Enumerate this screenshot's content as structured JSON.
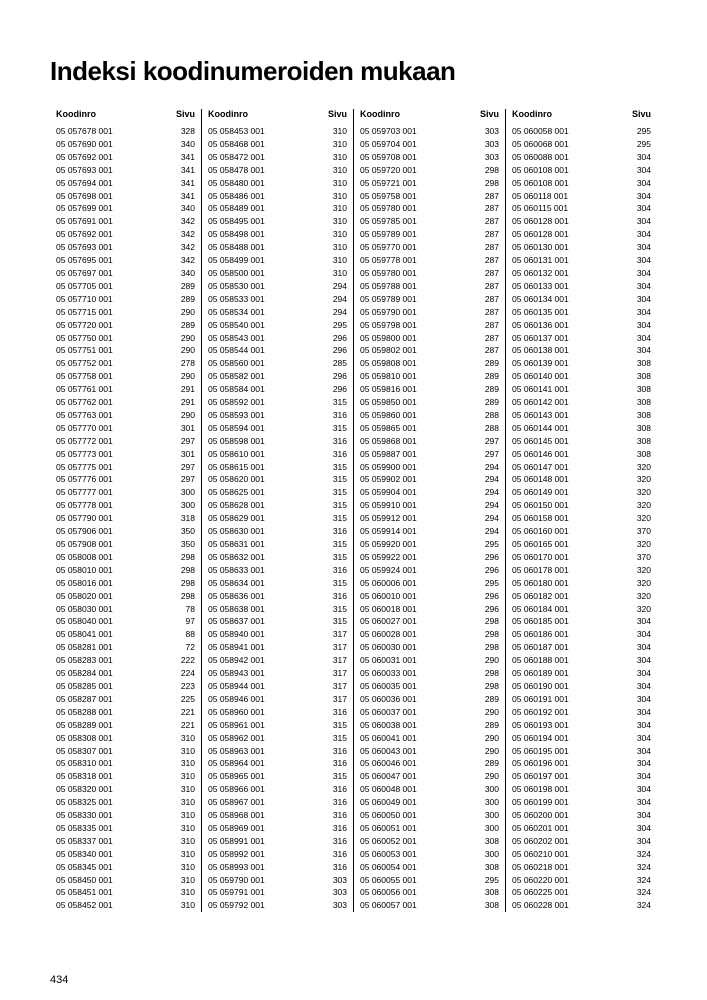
{
  "title": "Indeksi koodinumeroiden mukaan",
  "header_code": "Koodinro",
  "header_page": "Sivu",
  "page_number": "434",
  "columns": [
    [
      {
        "c": "05 057678 001",
        "p": "328"
      },
      {
        "c": "05 057690 001",
        "p": "340"
      },
      {
        "c": "05 057692 001",
        "p": "341"
      },
      {
        "c": "05 057693 001",
        "p": "341"
      },
      {
        "c": "05 057694 001",
        "p": "341"
      },
      {
        "c": "05 057698 001",
        "p": "341"
      },
      {
        "c": "05 057699 001",
        "p": "340"
      },
      {
        "c": "05 057691 001",
        "p": "342"
      },
      {
        "c": "05 057692 001",
        "p": "342"
      },
      {
        "c": "05 057693 001",
        "p": "342"
      },
      {
        "c": "05 057695 001",
        "p": "342"
      },
      {
        "c": "05 057697 001",
        "p": "340"
      },
      {
        "c": "05 057705 001",
        "p": "289"
      },
      {
        "c": "05 057710 001",
        "p": "289"
      },
      {
        "c": "05 057715 001",
        "p": "290"
      },
      {
        "c": "05 057720 001",
        "p": "289"
      },
      {
        "c": "05 057750 001",
        "p": "290"
      },
      {
        "c": "05 057751 001",
        "p": "290"
      },
      {
        "c": "05 057752 001",
        "p": "278"
      },
      {
        "c": "05 057758 001",
        "p": "290"
      },
      {
        "c": "05 057761 001",
        "p": "291"
      },
      {
        "c": "05 057762 001",
        "p": "291"
      },
      {
        "c": "05 057763 001",
        "p": "290"
      },
      {
        "c": "05 057770 001",
        "p": "301"
      },
      {
        "c": "05 057772 001",
        "p": "297"
      },
      {
        "c": "05 057773 001",
        "p": "301"
      },
      {
        "c": "05 057775 001",
        "p": "297"
      },
      {
        "c": "05 057776 001",
        "p": "297"
      },
      {
        "c": "05 057777 001",
        "p": "300"
      },
      {
        "c": "05 057778 001",
        "p": "300"
      },
      {
        "c": "05 057790 001",
        "p": "318"
      },
      {
        "c": "05 057906 001",
        "p": "350"
      },
      {
        "c": "05 057908 001",
        "p": "350"
      },
      {
        "c": "05 058008 001",
        "p": "298"
      },
      {
        "c": "05 058010 001",
        "p": "298"
      },
      {
        "c": "05 058016 001",
        "p": "298"
      },
      {
        "c": "05 058020 001",
        "p": "298"
      },
      {
        "c": "05 058030 001",
        "p": "78"
      },
      {
        "c": "05 058040 001",
        "p": "97"
      },
      {
        "c": "05 058041 001",
        "p": "88"
      },
      {
        "c": "05 058281 001",
        "p": "72"
      },
      {
        "c": "05 058283 001",
        "p": "222"
      },
      {
        "c": "05 058284 001",
        "p": "224"
      },
      {
        "c": "05 058285 001",
        "p": "223"
      },
      {
        "c": "05 058287 001",
        "p": "225"
      },
      {
        "c": "05 058288 001",
        "p": "221"
      },
      {
        "c": "05 058289 001",
        "p": "221"
      },
      {
        "c": "05 058308 001",
        "p": "310"
      },
      {
        "c": "05 058307 001",
        "p": "310"
      },
      {
        "c": "05 058310 001",
        "p": "310"
      },
      {
        "c": "05 058318 001",
        "p": "310"
      },
      {
        "c": "05 058320 001",
        "p": "310"
      },
      {
        "c": "05 058325 001",
        "p": "310"
      },
      {
        "c": "05 058330 001",
        "p": "310"
      },
      {
        "c": "05 058335 001",
        "p": "310"
      },
      {
        "c": "05 058337 001",
        "p": "310"
      },
      {
        "c": "05 058340 001",
        "p": "310"
      },
      {
        "c": "05 058345 001",
        "p": "310"
      },
      {
        "c": "05 058450 001",
        "p": "310"
      },
      {
        "c": "05 058451 001",
        "p": "310"
      },
      {
        "c": "05 058452 001",
        "p": "310"
      }
    ],
    [
      {
        "c": "05 058453 001",
        "p": "310"
      },
      {
        "c": "05 058468 001",
        "p": "310"
      },
      {
        "c": "05 058472 001",
        "p": "310"
      },
      {
        "c": "05 058478 001",
        "p": "310"
      },
      {
        "c": "05 058480 001",
        "p": "310"
      },
      {
        "c": "05 058486 001",
        "p": "310"
      },
      {
        "c": "05 058489 001",
        "p": "310"
      },
      {
        "c": "05 058495 001",
        "p": "310"
      },
      {
        "c": "05 058498 001",
        "p": "310"
      },
      {
        "c": "05 058488 001",
        "p": "310"
      },
      {
        "c": "05 058499 001",
        "p": "310"
      },
      {
        "c": "05 058500 001",
        "p": "310"
      },
      {
        "c": "05 058530 001",
        "p": "294"
      },
      {
        "c": "05 058533 001",
        "p": "294"
      },
      {
        "c": "05 058534 001",
        "p": "294"
      },
      {
        "c": "05 058540 001",
        "p": "295"
      },
      {
        "c": "05 058543 001",
        "p": "296"
      },
      {
        "c": "05 058544 001",
        "p": "296"
      },
      {
        "c": "05 058560 001",
        "p": "285"
      },
      {
        "c": "05 058582 001",
        "p": "296"
      },
      {
        "c": "05 058584 001",
        "p": "296"
      },
      {
        "c": "05 058592 001",
        "p": "315"
      },
      {
        "c": "05 058593 001",
        "p": "316"
      },
      {
        "c": "05 058594 001",
        "p": "315"
      },
      {
        "c": "05 058598 001",
        "p": "316"
      },
      {
        "c": "05 058610 001",
        "p": "316"
      },
      {
        "c": "05 058615 001",
        "p": "315"
      },
      {
        "c": "05 058620 001",
        "p": "315"
      },
      {
        "c": "05 058625 001",
        "p": "315"
      },
      {
        "c": "05 058628 001",
        "p": "315"
      },
      {
        "c": "05 058629 001",
        "p": "315"
      },
      {
        "c": "05 058630 001",
        "p": "316"
      },
      {
        "c": "05 058631 001",
        "p": "315"
      },
      {
        "c": "05 058632 001",
        "p": "315"
      },
      {
        "c": "05 058633 001",
        "p": "316"
      },
      {
        "c": "05 058634 001",
        "p": "315"
      },
      {
        "c": "05 058636 001",
        "p": "316"
      },
      {
        "c": "05 058638 001",
        "p": "315"
      },
      {
        "c": "05 058637 001",
        "p": "315"
      },
      {
        "c": "05 058940 001",
        "p": "317"
      },
      {
        "c": "05 058941 001",
        "p": "317"
      },
      {
        "c": "05 058942 001",
        "p": "317"
      },
      {
        "c": "05 058943 001",
        "p": "317"
      },
      {
        "c": "05 058944 001",
        "p": "317"
      },
      {
        "c": "05 058946 001",
        "p": "317"
      },
      {
        "c": "05 058960 001",
        "p": "316"
      },
      {
        "c": "05 058961 001",
        "p": "315"
      },
      {
        "c": "05 058962 001",
        "p": "315"
      },
      {
        "c": "05 058963 001",
        "p": "316"
      },
      {
        "c": "05 058964 001",
        "p": "316"
      },
      {
        "c": "05 058965 001",
        "p": "315"
      },
      {
        "c": "05 058966 001",
        "p": "316"
      },
      {
        "c": "05 058967 001",
        "p": "316"
      },
      {
        "c": "05 058968 001",
        "p": "316"
      },
      {
        "c": "05 058969 001",
        "p": "316"
      },
      {
        "c": "05 058991 001",
        "p": "316"
      },
      {
        "c": "05 058992 001",
        "p": "316"
      },
      {
        "c": "05 058993 001",
        "p": "316"
      },
      {
        "c": "05 059790 001",
        "p": "303"
      },
      {
        "c": "05 059791 001",
        "p": "303"
      },
      {
        "c": "05 059792 001",
        "p": "303"
      }
    ],
    [
      {
        "c": "05 059703 001",
        "p": "303"
      },
      {
        "c": "05 059704 001",
        "p": "303"
      },
      {
        "c": "05 059708 001",
        "p": "303"
      },
      {
        "c": "05 059720 001",
        "p": "298"
      },
      {
        "c": "05 059721 001",
        "p": "298"
      },
      {
        "c": "05 059758 001",
        "p": "287"
      },
      {
        "c": "05 059780 001",
        "p": "287"
      },
      {
        "c": "05 059785 001",
        "p": "287"
      },
      {
        "c": "05 059789 001",
        "p": "287"
      },
      {
        "c": "05 059770 001",
        "p": "287"
      },
      {
        "c": "05 059778 001",
        "p": "287"
      },
      {
        "c": "05 059780 001",
        "p": "287"
      },
      {
        "c": "05 059788 001",
        "p": "287"
      },
      {
        "c": "05 059789 001",
        "p": "287"
      },
      {
        "c": "05 059790 001",
        "p": "287"
      },
      {
        "c": "05 059798 001",
        "p": "287"
      },
      {
        "c": "05 059800 001",
        "p": "287"
      },
      {
        "c": "05 059802 001",
        "p": "287"
      },
      {
        "c": "05 059808 001",
        "p": "289"
      },
      {
        "c": "05 059810 001",
        "p": "289"
      },
      {
        "c": "05 059816 001",
        "p": "289"
      },
      {
        "c": "05 059850 001",
        "p": "289"
      },
      {
        "c": "05 059860 001",
        "p": "288"
      },
      {
        "c": "05 059865 001",
        "p": "288"
      },
      {
        "c": "05 059868 001",
        "p": "297"
      },
      {
        "c": "05 059887 001",
        "p": "297"
      },
      {
        "c": "05 059900 001",
        "p": "294"
      },
      {
        "c": "05 059902 001",
        "p": "294"
      },
      {
        "c": "05 059904 001",
        "p": "294"
      },
      {
        "c": "05 059910 001",
        "p": "294"
      },
      {
        "c": "05 059912 001",
        "p": "294"
      },
      {
        "c": "05 059914 001",
        "p": "294"
      },
      {
        "c": "05 059920 001",
        "p": "295"
      },
      {
        "c": "05 059922 001",
        "p": "296"
      },
      {
        "c": "05 059924 001",
        "p": "296"
      },
      {
        "c": "05 060006 001",
        "p": "295"
      },
      {
        "c": "05 060010 001",
        "p": "296"
      },
      {
        "c": "05 060018 001",
        "p": "296"
      },
      {
        "c": "05 060027 001",
        "p": "298"
      },
      {
        "c": "05 060028 001",
        "p": "298"
      },
      {
        "c": "05 060030 001",
        "p": "298"
      },
      {
        "c": "05 060031 001",
        "p": "290"
      },
      {
        "c": "05 060033 001",
        "p": "298"
      },
      {
        "c": "05 060035 001",
        "p": "298"
      },
      {
        "c": "05 060036 001",
        "p": "289"
      },
      {
        "c": "05 060037 001",
        "p": "290"
      },
      {
        "c": "05 060038 001",
        "p": "289"
      },
      {
        "c": "05 060041 001",
        "p": "290"
      },
      {
        "c": "05 060043 001",
        "p": "290"
      },
      {
        "c": "05 060046 001",
        "p": "289"
      },
      {
        "c": "05 060047 001",
        "p": "290"
      },
      {
        "c": "05 060048 001",
        "p": "300"
      },
      {
        "c": "05 060049 001",
        "p": "300"
      },
      {
        "c": "05 060050 001",
        "p": "300"
      },
      {
        "c": "05 060051 001",
        "p": "300"
      },
      {
        "c": "05 060052 001",
        "p": "308"
      },
      {
        "c": "05 060053 001",
        "p": "300"
      },
      {
        "c": "05 060054 001",
        "p": "308"
      },
      {
        "c": "05 060055 001",
        "p": "295"
      },
      {
        "c": "05 060056 001",
        "p": "308"
      },
      {
        "c": "05 060057 001",
        "p": "308"
      }
    ],
    [
      {
        "c": "05 060058 001",
        "p": "295"
      },
      {
        "c": "05 060068 001",
        "p": "295"
      },
      {
        "c": "05 060088 001",
        "p": "304"
      },
      {
        "c": "05 060108 001",
        "p": "304"
      },
      {
        "c": "05 060108 001",
        "p": "304"
      },
      {
        "c": "05 060118 001",
        "p": "304"
      },
      {
        "c": "05 060115 001",
        "p": "304"
      },
      {
        "c": "05 060128 001",
        "p": "304"
      },
      {
        "c": "05 060128 001",
        "p": "304"
      },
      {
        "c": "05 060130 001",
        "p": "304"
      },
      {
        "c": "05 060131 001",
        "p": "304"
      },
      {
        "c": "05 060132 001",
        "p": "304"
      },
      {
        "c": "05 060133 001",
        "p": "304"
      },
      {
        "c": "05 060134 001",
        "p": "304"
      },
      {
        "c": "05 060135 001",
        "p": "304"
      },
      {
        "c": "05 060136 001",
        "p": "304"
      },
      {
        "c": "05 060137 001",
        "p": "304"
      },
      {
        "c": "05 060138 001",
        "p": "304"
      },
      {
        "c": "05 060139 001",
        "p": "308"
      },
      {
        "c": "05 060140 001",
        "p": "308"
      },
      {
        "c": "05 060141 001",
        "p": "308"
      },
      {
        "c": "05 060142 001",
        "p": "308"
      },
      {
        "c": "05 060143 001",
        "p": "308"
      },
      {
        "c": "05 060144 001",
        "p": "308"
      },
      {
        "c": "05 060145 001",
        "p": "308"
      },
      {
        "c": "05 060146 001",
        "p": "308"
      },
      {
        "c": "05 060147 001",
        "p": "320"
      },
      {
        "c": "05 060148 001",
        "p": "320"
      },
      {
        "c": "05 060149 001",
        "p": "320"
      },
      {
        "c": "05 060150 001",
        "p": "320"
      },
      {
        "c": "05 060158 001",
        "p": "320"
      },
      {
        "c": "05 060160 001",
        "p": "370"
      },
      {
        "c": "05 060165 001",
        "p": "320"
      },
      {
        "c": "05 060170 001",
        "p": "370"
      },
      {
        "c": "05 060178 001",
        "p": "320"
      },
      {
        "c": "05 060180 001",
        "p": "320"
      },
      {
        "c": "05 060182 001",
        "p": "320"
      },
      {
        "c": "05 060184 001",
        "p": "320"
      },
      {
        "c": "05 060185 001",
        "p": "304"
      },
      {
        "c": "05 060186 001",
        "p": "304"
      },
      {
        "c": "05 060187 001",
        "p": "304"
      },
      {
        "c": "05 060188 001",
        "p": "304"
      },
      {
        "c": "05 060189 001",
        "p": "304"
      },
      {
        "c": "05 060190 001",
        "p": "304"
      },
      {
        "c": "05 060191 001",
        "p": "304"
      },
      {
        "c": "05 060192 001",
        "p": "304"
      },
      {
        "c": "05 060193 001",
        "p": "304"
      },
      {
        "c": "05 060194 001",
        "p": "304"
      },
      {
        "c": "05 060195 001",
        "p": "304"
      },
      {
        "c": "05 060196 001",
        "p": "304"
      },
      {
        "c": "05 060197 001",
        "p": "304"
      },
      {
        "c": "05 060198 001",
        "p": "304"
      },
      {
        "c": "05 060199 001",
        "p": "304"
      },
      {
        "c": "05 060200 001",
        "p": "304"
      },
      {
        "c": "05 060201 001",
        "p": "304"
      },
      {
        "c": "05 060202 001",
        "p": "304"
      },
      {
        "c": "05 060210 001",
        "p": "324"
      },
      {
        "c": "05 060218 001",
        "p": "324"
      },
      {
        "c": "05 060220 001",
        "p": "324"
      },
      {
        "c": "05 060225 001",
        "p": "324"
      },
      {
        "c": "05 060228 001",
        "p": "324"
      }
    ]
  ]
}
